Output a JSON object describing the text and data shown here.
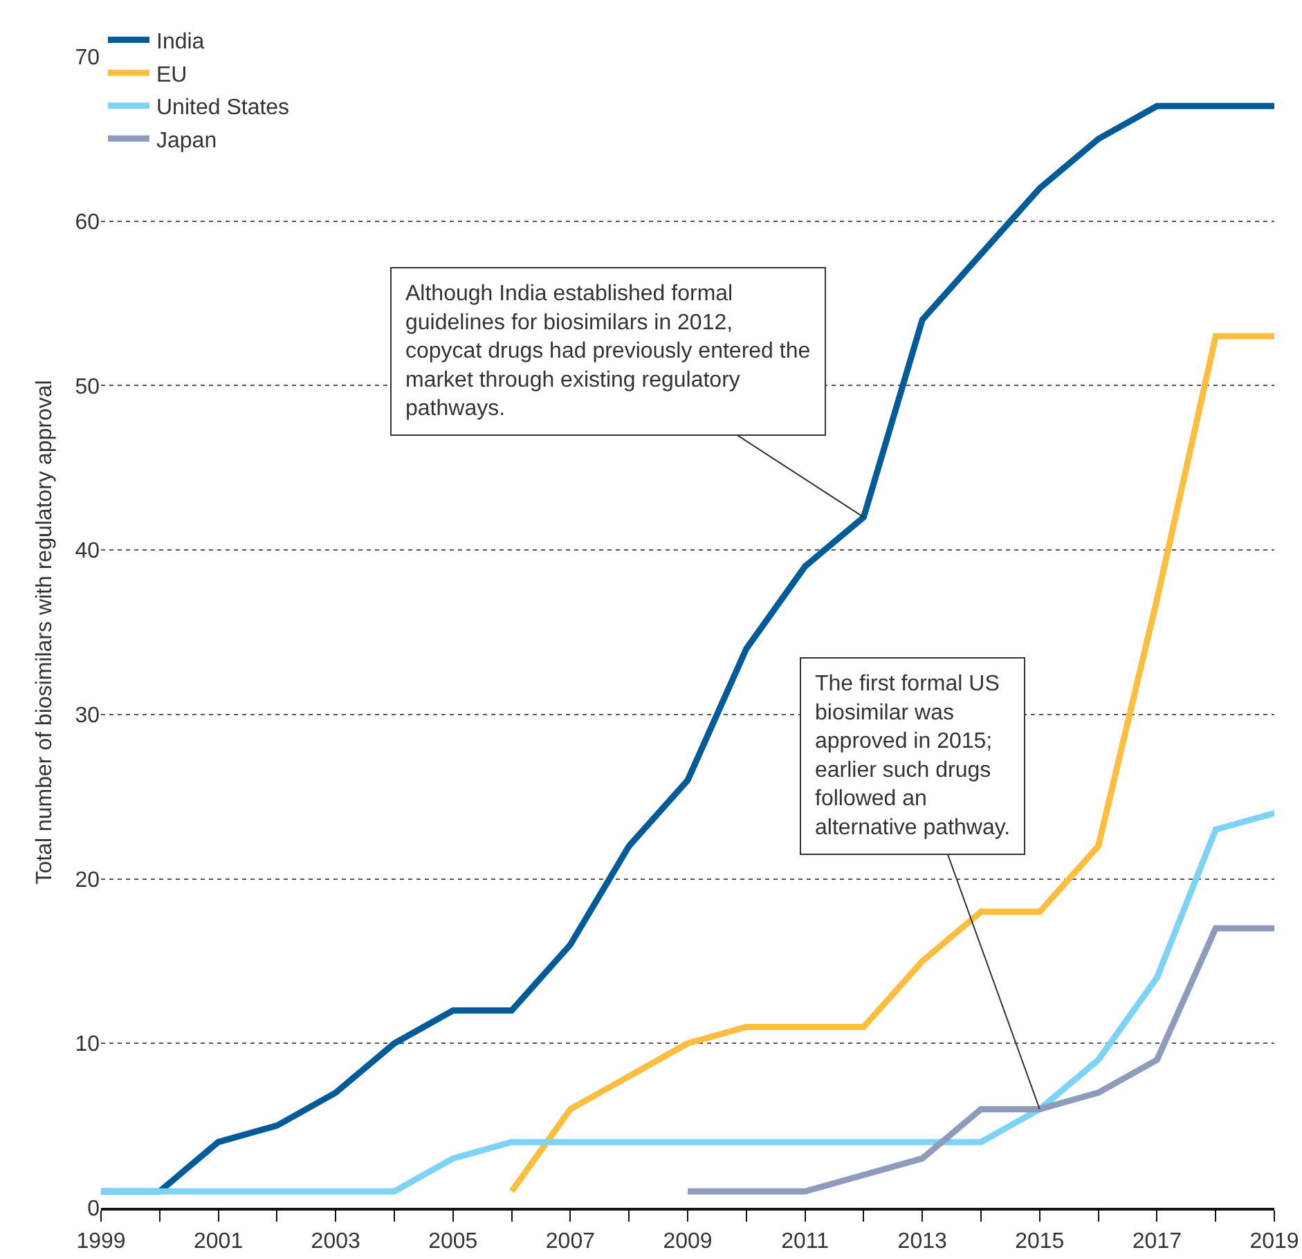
{
  "chart_data": {
    "type": "line",
    "ylabel": "Total number of biosimilars with regulatory approval",
    "x": [
      1999,
      2000,
      2001,
      2002,
      2003,
      2004,
      2005,
      2006,
      2007,
      2008,
      2009,
      2010,
      2011,
      2012,
      2013,
      2014,
      2015,
      2016,
      2017,
      2018,
      2019
    ],
    "series": [
      {
        "name": "India",
        "color": "#005b98",
        "values": [
          1,
          1,
          4,
          5,
          7,
          10,
          12,
          12,
          16,
          22,
          26,
          34,
          39,
          42,
          54,
          58,
          62,
          65,
          67,
          67,
          67
        ]
      },
      {
        "name": "EU",
        "color": "#fbbe3e",
        "values": [
          null,
          null,
          null,
          null,
          null,
          null,
          null,
          1,
          6,
          8,
          10,
          11,
          11,
          11,
          15,
          18,
          18,
          22,
          37,
          53,
          53
        ]
      },
      {
        "name": "United States",
        "color": "#7dd3f6",
        "values": [
          1,
          1,
          1,
          1,
          1,
          1,
          3,
          4,
          4,
          4,
          4,
          4,
          4,
          4,
          4,
          4,
          6,
          9,
          14,
          23,
          24
        ]
      },
      {
        "name": "Japan",
        "color": "#8f9bbc",
        "values": [
          null,
          null,
          null,
          null,
          null,
          null,
          null,
          null,
          null,
          null,
          1,
          1,
          1,
          2,
          3,
          6,
          6,
          7,
          9,
          17,
          17
        ]
      }
    ],
    "xlim": [
      1999,
      2019
    ],
    "xticks": [
      1999,
      {
        "value": 2000,
        "label": null
      },
      2001,
      {
        "value": 2002,
        "label": null
      },
      2003,
      {
        "value": 2004,
        "label": null
      },
      2005,
      {
        "value": 2006,
        "label": null
      },
      2007,
      {
        "value": 2008,
        "label": null
      },
      2009,
      {
        "value": 2010,
        "label": null
      },
      2011,
      {
        "value": 2012,
        "label": null
      },
      2013,
      {
        "value": 2014,
        "label": null
      },
      2015,
      {
        "value": 2016,
        "label": null
      },
      2017,
      {
        "value": 2018,
        "label": null
      },
      2019
    ],
    "ylim": [
      0,
      70
    ],
    "yticks": [
      0,
      10,
      20,
      30,
      40,
      50,
      60,
      70
    ],
    "grid": "y",
    "legend": "top left",
    "marker": "none",
    "line_style": "solid",
    "annotations": [
      {
        "text": "Although India established formal guidelines for biosimilars in 2012, copycat drugs had previously entered the market through existing regulatory pathways.",
        "x": 2012,
        "y": 42
      },
      {
        "text": "The first formal US biosimilar was approved in 2015; earlier such drugs followed an alternative pathway.",
        "x": 2015,
        "y": 6
      }
    ]
  }
}
